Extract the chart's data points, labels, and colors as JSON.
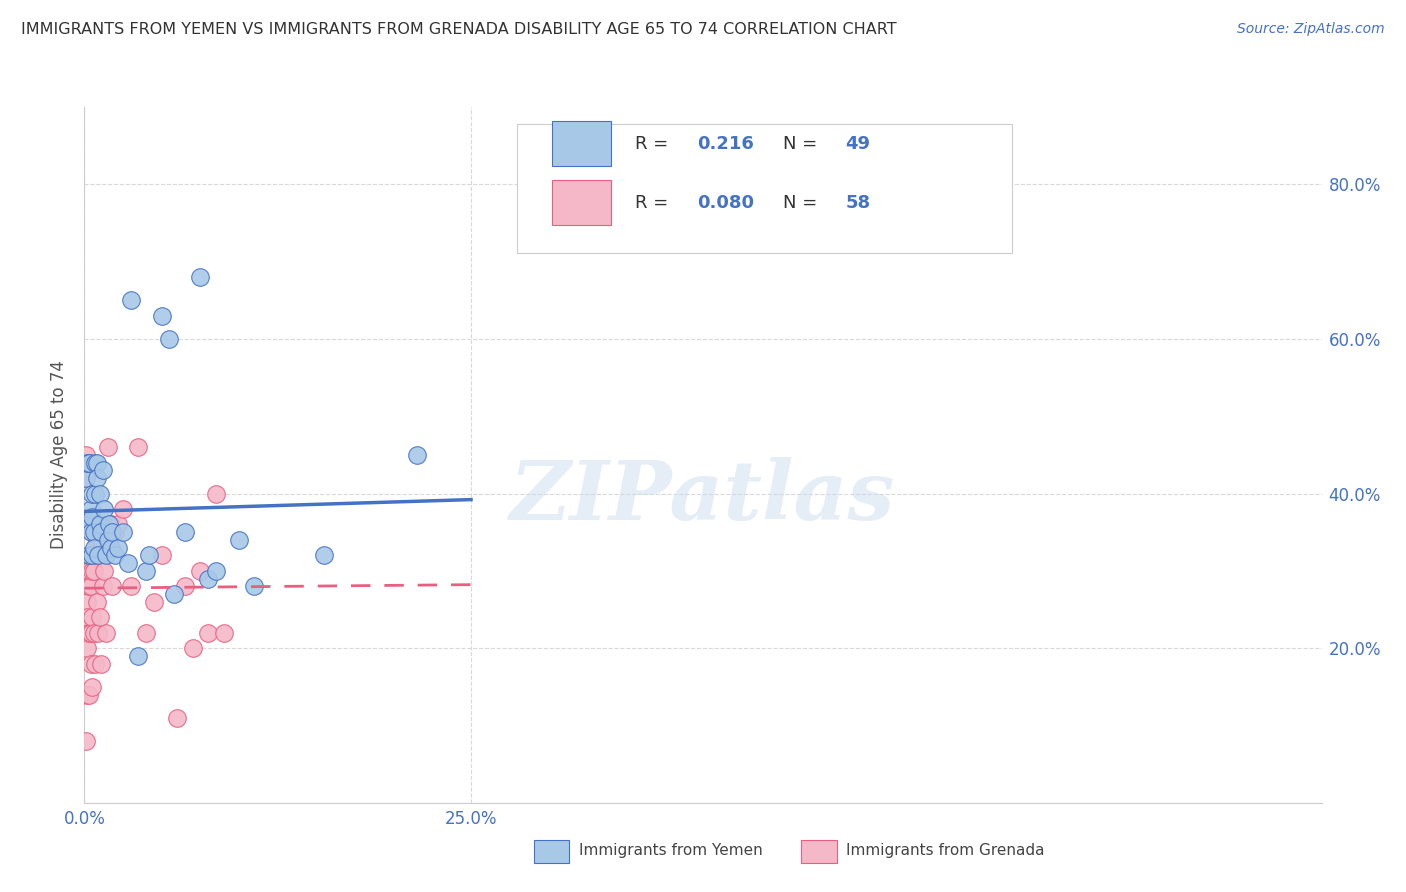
{
  "title": "IMMIGRANTS FROM YEMEN VS IMMIGRANTS FROM GRENADA DISABILITY AGE 65 TO 74 CORRELATION CHART",
  "source": "Source: ZipAtlas.com",
  "ylabel": "Disability Age 65 to 74",
  "xlim": [
    0.0,
    0.25
  ],
  "ylim": [
    0.0,
    0.9
  ],
  "xticks": [
    0.0,
    0.25
  ],
  "xticklabels": [
    "0.0%",
    "25.0%"
  ],
  "yticks": [
    0.0,
    0.2,
    0.4,
    0.6,
    0.8
  ],
  "yticklabels_right": [
    "",
    "20.0%",
    "40.0%",
    "60.0%",
    "80.0%"
  ],
  "legend_r_yemen": "0.216",
  "legend_n_yemen": "49",
  "legend_r_grenada": "0.080",
  "legend_n_grenada": "58",
  "watermark_text": "ZIPatlas",
  "color_yemen_fill": "#a8c8e8",
  "color_grenada_fill": "#f4b8c8",
  "color_yemen_edge": "#4472c4",
  "color_grenada_edge": "#e86080",
  "color_line_yemen": "#4472c4",
  "color_line_grenada": "#e86080",
  "background_color": "#ffffff",
  "grid_color": "#d8d8d8",
  "tick_color": "#4472c4",
  "title_color": "#333333",
  "ylabel_color": "#555555",
  "yemen_x": [
    0.001,
    0.001,
    0.002,
    0.002,
    0.003,
    0.003,
    0.003,
    0.004,
    0.004,
    0.004,
    0.005,
    0.005,
    0.005,
    0.006,
    0.006,
    0.007,
    0.007,
    0.008,
    0.008,
    0.009,
    0.01,
    0.01,
    0.011,
    0.012,
    0.013,
    0.014,
    0.015,
    0.016,
    0.017,
    0.018,
    0.02,
    0.022,
    0.025,
    0.028,
    0.03,
    0.035,
    0.04,
    0.042,
    0.05,
    0.055,
    0.058,
    0.065,
    0.075,
    0.08,
    0.085,
    0.1,
    0.11,
    0.155,
    0.215
  ],
  "yemen_y": [
    0.36,
    0.42,
    0.36,
    0.44,
    0.32,
    0.44,
    0.44,
    0.36,
    0.38,
    0.35,
    0.32,
    0.4,
    0.37,
    0.35,
    0.33,
    0.4,
    0.44,
    0.44,
    0.42,
    0.32,
    0.36,
    0.4,
    0.35,
    0.43,
    0.38,
    0.32,
    0.34,
    0.36,
    0.33,
    0.35,
    0.32,
    0.33,
    0.35,
    0.31,
    0.65,
    0.19,
    0.3,
    0.32,
    0.63,
    0.6,
    0.27,
    0.35,
    0.68,
    0.29,
    0.3,
    0.34,
    0.28,
    0.32,
    0.45
  ],
  "grenada_x": [
    0.001,
    0.001,
    0.001,
    0.001,
    0.001,
    0.001,
    0.002,
    0.002,
    0.002,
    0.002,
    0.002,
    0.003,
    0.003,
    0.003,
    0.003,
    0.003,
    0.004,
    0.004,
    0.004,
    0.004,
    0.005,
    0.005,
    0.005,
    0.005,
    0.006,
    0.006,
    0.007,
    0.007,
    0.008,
    0.008,
    0.009,
    0.009,
    0.01,
    0.01,
    0.011,
    0.011,
    0.012,
    0.013,
    0.014,
    0.015,
    0.016,
    0.017,
    0.018,
    0.02,
    0.022,
    0.025,
    0.03,
    0.035,
    0.04,
    0.045,
    0.05,
    0.06,
    0.065,
    0.07,
    0.075,
    0.08,
    0.085,
    0.09
  ],
  "grenada_y": [
    0.45,
    0.42,
    0.36,
    0.3,
    0.22,
    0.08,
    0.28,
    0.26,
    0.24,
    0.2,
    0.14,
    0.32,
    0.3,
    0.28,
    0.22,
    0.14,
    0.32,
    0.28,
    0.22,
    0.18,
    0.35,
    0.3,
    0.24,
    0.15,
    0.3,
    0.22,
    0.32,
    0.18,
    0.34,
    0.26,
    0.35,
    0.22,
    0.32,
    0.24,
    0.34,
    0.18,
    0.28,
    0.3,
    0.22,
    0.46,
    0.34,
    0.36,
    0.28,
    0.35,
    0.36,
    0.38,
    0.28,
    0.46,
    0.22,
    0.26,
    0.32,
    0.11,
    0.28,
    0.2,
    0.3,
    0.22,
    0.4,
    0.22
  ]
}
